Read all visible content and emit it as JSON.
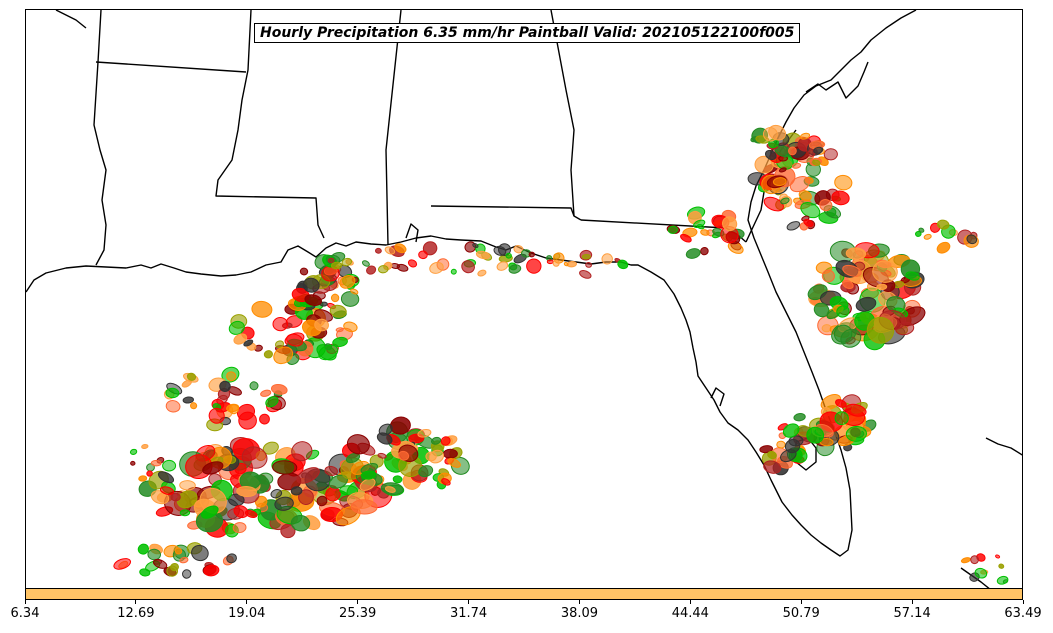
{
  "title": "Hourly Precipitation 6.35 mm/hr Paintball Valid: 202105122100f005",
  "colorbar": {
    "color": "#ffc466",
    "min": 6.34,
    "max": 63.49,
    "ticks": [
      "6.34",
      "12.69",
      "19.04",
      "25.39",
      "31.74",
      "38.09",
      "44.44",
      "50.79",
      "57.14",
      "63.49"
    ]
  },
  "map": {
    "region": "Gulf of Mexico / Southeastern US",
    "boundary_color": "#000000",
    "paintball_palette": [
      "#ff8c00",
      "#ff0000",
      "#00c000",
      "#8b0000",
      "#228b22",
      "#9aa000",
      "#ff6a33",
      "#333333",
      "#b22222",
      "#ff9f40"
    ]
  }
}
